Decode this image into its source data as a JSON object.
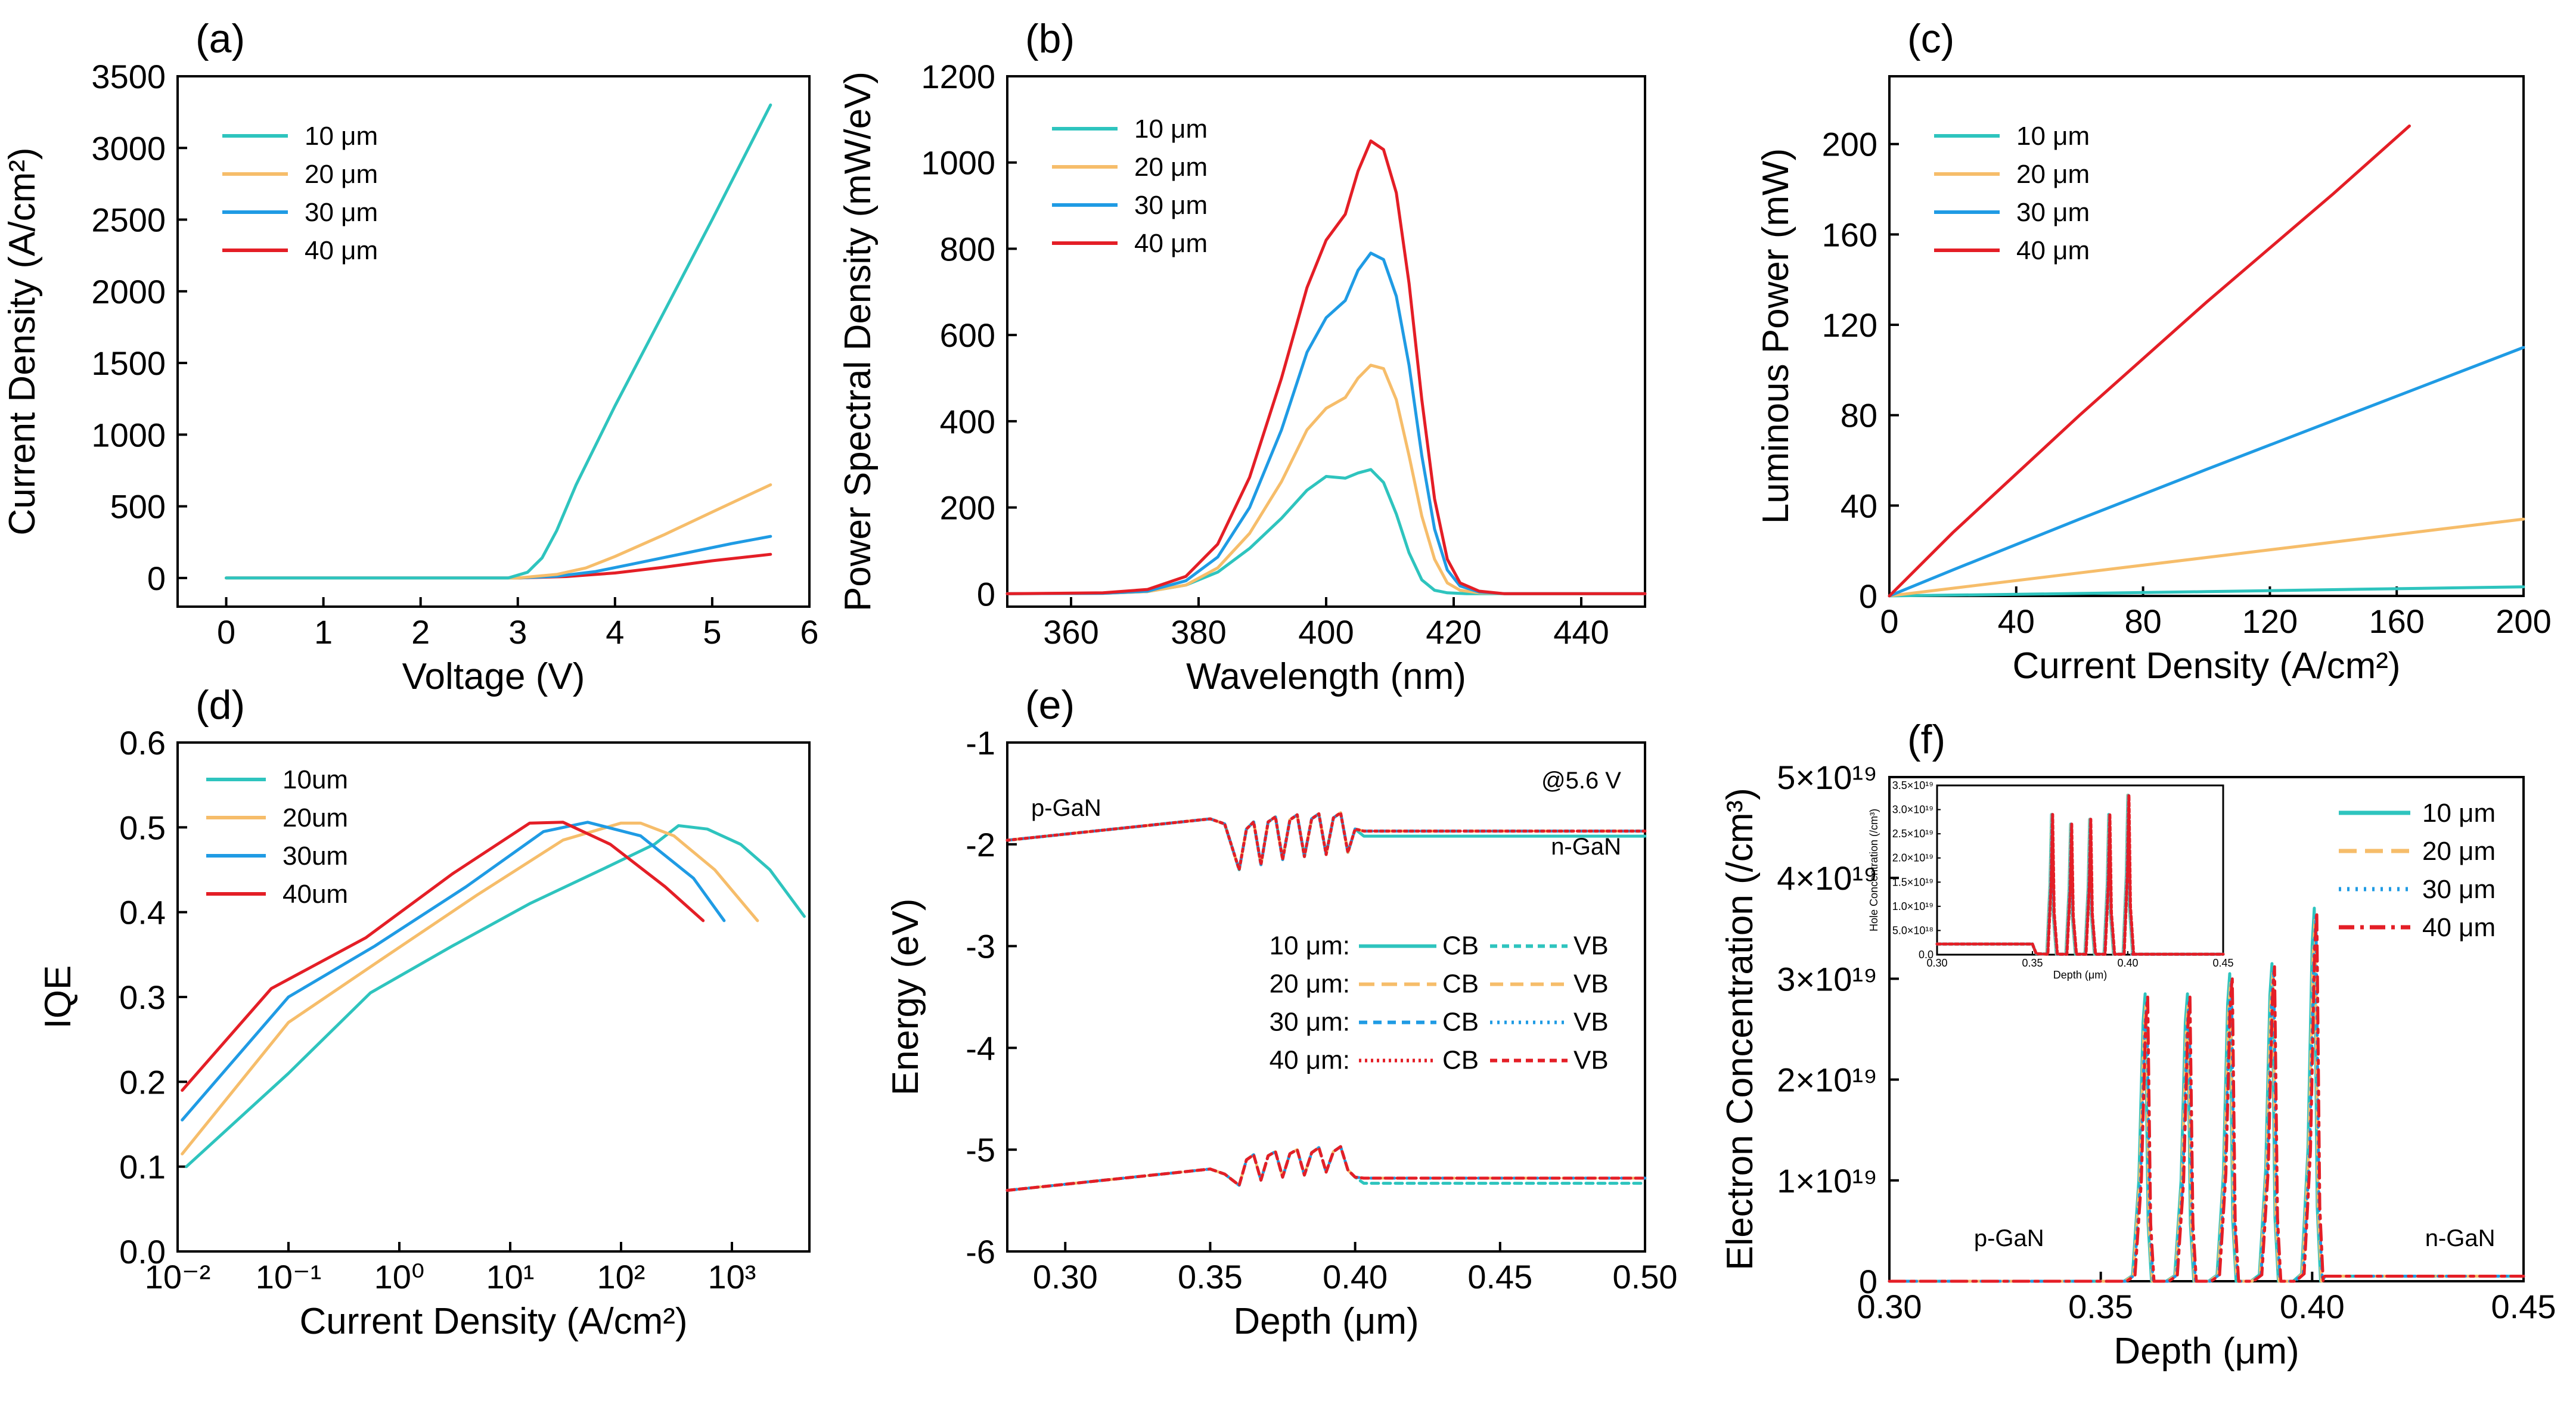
{
  "colors": {
    "10": "#2ec4be",
    "20": "#f6bd6a",
    "30": "#1f9be4",
    "40": "#e41e26"
  },
  "chart_data": [
    {
      "panel": "(a)",
      "type": "line",
      "xlabel": "Voltage (V)",
      "ylabel": "Current Density (A/cm²)",
      "xlim": [
        -0.5,
        6
      ],
      "ylim": [
        -200,
        3500
      ],
      "xticks": [
        "0",
        "1",
        "2",
        "3",
        "4",
        "5",
        "6"
      ],
      "yticks": [
        "0",
        "500",
        "1000",
        "1500",
        "2000",
        "2500",
        "3000",
        "3500"
      ],
      "series": [
        {
          "name": "10 μm",
          "color_key": "10",
          "x": [
            0,
            1,
            2,
            2.9,
            3.1,
            3.25,
            3.4,
            3.6,
            4,
            4.5,
            5,
            5.6
          ],
          "y": [
            0,
            0,
            0,
            0,
            40,
            140,
            330,
            650,
            1200,
            1850,
            2500,
            3300
          ]
        },
        {
          "name": "20 μm",
          "color_key": "20",
          "x": [
            0,
            1,
            2,
            3,
            3.4,
            3.7,
            4,
            4.5,
            5,
            5.6
          ],
          "y": [
            0,
            0,
            0,
            0,
            25,
            70,
            150,
            300,
            460,
            650
          ]
        },
        {
          "name": "30 μm",
          "color_key": "30",
          "x": [
            0,
            1,
            2,
            3,
            3.4,
            3.8,
            4.2,
            4.7,
            5.2,
            5.6
          ],
          "y": [
            0,
            0,
            0,
            0,
            12,
            45,
            100,
            170,
            240,
            290
          ]
        },
        {
          "name": "40 μm",
          "color_key": "40",
          "x": [
            0,
            1,
            2,
            3,
            3.5,
            4,
            4.5,
            5,
            5.6
          ],
          "y": [
            0,
            0,
            0,
            0,
            10,
            35,
            75,
            120,
            165
          ]
        }
      ]
    },
    {
      "panel": "(b)",
      "type": "line",
      "xlabel": "Wavelength (nm)",
      "ylabel": "Power Spectral Density (mW/eV)",
      "xlim": [
        350,
        450
      ],
      "ylim": [
        -30,
        1200
      ],
      "xticks": [
        "360",
        "380",
        "400",
        "420",
        "440"
      ],
      "yticks": [
        "0",
        "200",
        "400",
        "600",
        "800",
        "1000",
        "1200"
      ],
      "series": [
        {
          "name": "10 μm",
          "color_key": "10",
          "x": [
            350,
            365,
            372,
            378,
            383,
            388,
            393,
            397,
            400,
            403,
            405,
            407,
            409,
            411,
            413,
            415,
            417,
            419,
            422,
            425,
            450
          ],
          "y": [
            0,
            1,
            5,
            20,
            50,
            105,
            175,
            240,
            272,
            268,
            280,
            288,
            258,
            185,
            95,
            32,
            8,
            2,
            0,
            0,
            0
          ]
        },
        {
          "name": "20 μm",
          "color_key": "20",
          "x": [
            350,
            365,
            372,
            378,
            383,
            388,
            393,
            397,
            400,
            403,
            405,
            407,
            409,
            411,
            413,
            415,
            417,
            419,
            421,
            424,
            428,
            450
          ],
          "y": [
            0,
            1,
            5,
            20,
            60,
            140,
            260,
            380,
            430,
            455,
            500,
            530,
            522,
            450,
            320,
            180,
            80,
            25,
            8,
            2,
            0,
            0
          ]
        },
        {
          "name": "30 μm",
          "color_key": "30",
          "x": [
            350,
            365,
            372,
            378,
            383,
            388,
            393,
            397,
            400,
            403,
            405,
            407,
            409,
            411,
            413,
            415,
            417,
            419,
            421,
            424,
            428,
            450
          ],
          "y": [
            0,
            1,
            6,
            30,
            85,
            200,
            380,
            560,
            640,
            680,
            750,
            790,
            775,
            690,
            530,
            320,
            150,
            55,
            18,
            4,
            0,
            0
          ]
        },
        {
          "name": "40 μm",
          "color_key": "40",
          "x": [
            350,
            365,
            372,
            378,
            383,
            388,
            393,
            397,
            400,
            403,
            405,
            407,
            409,
            411,
            413,
            415,
            417,
            419,
            421,
            424,
            428,
            450
          ],
          "y": [
            0,
            2,
            10,
            40,
            115,
            270,
            500,
            710,
            820,
            880,
            980,
            1050,
            1030,
            930,
            720,
            450,
            220,
            80,
            25,
            6,
            0,
            0
          ]
        }
      ]
    },
    {
      "panel": "(c)",
      "type": "line",
      "xlabel": "Current Density (A/cm²)",
      "ylabel": "Luminous Power (mW)",
      "xlim": [
        0,
        200
      ],
      "ylim": [
        0,
        230
      ],
      "xticks": [
        "0",
        "40",
        "80",
        "120",
        "160",
        "200"
      ],
      "yticks": [
        "0",
        "40",
        "80",
        "120",
        "160",
        "200"
      ],
      "series": [
        {
          "name": "10 μm",
          "color_key": "10",
          "x": [
            0,
            50,
            100,
            150,
            200
          ],
          "y": [
            0,
            0.9,
            1.9,
            3,
            4
          ]
        },
        {
          "name": "20 μm",
          "color_key": "20",
          "x": [
            0,
            20,
            60,
            100,
            150,
            200
          ],
          "y": [
            0,
            3.4,
            10.2,
            17,
            25.5,
            34
          ]
        },
        {
          "name": "30 μm",
          "color_key": "30",
          "x": [
            0,
            20,
            60,
            100,
            150,
            200
          ],
          "y": [
            0,
            11.5,
            34,
            56,
            83,
            110
          ]
        },
        {
          "name": "40 μm",
          "color_key": "40",
          "x": [
            0,
            20,
            60,
            100,
            140,
            164
          ],
          "y": [
            0,
            28,
            80,
            130,
            178,
            208
          ]
        }
      ]
    },
    {
      "panel": "(d)",
      "type": "line",
      "xscale": "log",
      "xlabel": "Current Density (A/cm²)",
      "ylabel": "IQE",
      "xlim": [
        0.01,
        5000
      ],
      "ylim": [
        0,
        0.6
      ],
      "xticks": [
        "10⁻²",
        "10⁻¹",
        "10⁰",
        "10¹",
        "10²",
        "10³"
      ],
      "yticks": [
        "0.0",
        "0.1",
        "0.2",
        "0.3",
        "0.4",
        "0.5",
        "0.6"
      ],
      "series": [
        {
          "name": "10um",
          "color_key": "10",
          "x": [
            0.012,
            0.1,
            0.55,
            3,
            15,
            80,
            200,
            330,
            600,
            1200,
            2200,
            4500
          ],
          "y": [
            0.1,
            0.21,
            0.305,
            0.36,
            0.41,
            0.455,
            0.48,
            0.502,
            0.498,
            0.48,
            0.45,
            0.395
          ]
        },
        {
          "name": "20um",
          "color_key": "20",
          "x": [
            0.011,
            0.1,
            0.8,
            5,
            30,
            100,
            150,
            300,
            700,
            1700
          ],
          "y": [
            0.115,
            0.27,
            0.35,
            0.42,
            0.485,
            0.505,
            0.505,
            0.49,
            0.45,
            0.39
          ]
        },
        {
          "name": "30um",
          "color_key": "30",
          "x": [
            0.011,
            0.1,
            0.6,
            4,
            20,
            50,
            150,
            450,
            850
          ],
          "y": [
            0.155,
            0.3,
            0.36,
            0.43,
            0.495,
            0.506,
            0.49,
            0.44,
            0.39
          ]
        },
        {
          "name": "40um",
          "color_key": "40",
          "x": [
            0.011,
            0.07,
            0.5,
            3,
            15,
            30,
            80,
            250,
            550
          ],
          "y": [
            0.19,
            0.31,
            0.37,
            0.445,
            0.505,
            0.506,
            0.48,
            0.43,
            0.39
          ]
        }
      ]
    },
    {
      "panel": "(e)",
      "type": "line",
      "xlabel": "Depth (μm)",
      "ylabel": "Energy (eV)",
      "xlim": [
        0.28,
        0.5
      ],
      "ylim": [
        -6,
        -1
      ],
      "xticks": [
        "0.30",
        "0.35",
        "0.40",
        "0.45",
        "0.50"
      ],
      "yticks": [
        "-1",
        "-2",
        "-3",
        "-4",
        "-5",
        "-6"
      ],
      "series": [
        {
          "name": "10 μm: CB",
          "color_key": "10",
          "band": "CB"
        },
        {
          "name": "10 μm: VB",
          "color_key": "10",
          "band": "VB"
        },
        {
          "name": "20 μm: CB",
          "color_key": "20",
          "band": "CB"
        },
        {
          "name": "20 μm: VB",
          "color_key": "20",
          "band": "VB"
        },
        {
          "name": "30 μm: CB",
          "color_key": "30",
          "band": "CB"
        },
        {
          "name": "30 μm: VB",
          "color_key": "30",
          "band": "VB"
        },
        {
          "name": "40 μm: CB",
          "color_key": "40",
          "band": "CB"
        },
        {
          "name": "40 μm: VB",
          "color_key": "40",
          "band": "VB"
        }
      ],
      "cb_x": [
        0.28,
        0.35,
        0.355,
        0.36,
        0.3625,
        0.365,
        0.3675,
        0.37,
        0.3725,
        0.375,
        0.3775,
        0.38,
        0.3825,
        0.385,
        0.3875,
        0.39,
        0.3925,
        0.395,
        0.3975,
        0.4,
        0.403,
        0.5
      ],
      "cb_y": [
        -1.96,
        -1.75,
        -1.8,
        -2.25,
        -1.85,
        -1.78,
        -2.2,
        -1.78,
        -1.73,
        -2.15,
        -1.76,
        -1.71,
        -2.12,
        -1.75,
        -1.7,
        -2.1,
        -1.74,
        -1.69,
        -2.08,
        -1.85,
        -1.87,
        -1.87
      ],
      "vb_x": [
        0.28,
        0.35,
        0.355,
        0.36,
        0.3625,
        0.365,
        0.3675,
        0.37,
        0.3725,
        0.375,
        0.3775,
        0.38,
        0.3825,
        0.385,
        0.3875,
        0.39,
        0.3925,
        0.395,
        0.3975,
        0.4,
        0.403,
        0.5
      ],
      "vb_y": [
        -5.4,
        -5.19,
        -5.24,
        -5.35,
        -5.1,
        -5.05,
        -5.3,
        -5.06,
        -5.02,
        -5.27,
        -5.04,
        -5.0,
        -5.25,
        -5.03,
        -4.98,
        -5.22,
        -5.02,
        -4.97,
        -5.2,
        -5.27,
        -5.28,
        -5.28
      ],
      "n_gan_offset": -0.05,
      "annotations": [
        "p-GaN",
        "n-GaN",
        "@5.6 V"
      ],
      "legend_rows": [
        {
          "label": "10 μm:",
          "cb": "CB",
          "vb": "VB",
          "color_key": "10"
        },
        {
          "label": "20 μm:",
          "cb": "CB",
          "vb": "VB",
          "color_key": "20"
        },
        {
          "label": "30 μm:",
          "cb": "CB",
          "vb": "VB",
          "color_key": "30"
        },
        {
          "label": "40 μm:",
          "cb": "CB",
          "vb": "VB",
          "color_key": "40"
        }
      ]
    },
    {
      "panel": "(f)",
      "type": "line",
      "xlabel": "Depth (μm)",
      "ylabel": "Electron Concentration (/cm³)",
      "xlim": [
        0.3,
        0.45
      ],
      "ylim": [
        0,
        5e+19
      ],
      "xticks": [
        "0.30",
        "0.35",
        "0.40",
        "0.45"
      ],
      "yticks": [
        "0",
        "1×10¹⁹",
        "2×10¹⁹",
        "3×10¹⁹",
        "4×10¹⁹",
        "5×10¹⁹"
      ],
      "peaks": [
        {
          "center": 0.36,
          "height": 2.85e+19
        },
        {
          "center": 0.37,
          "height": 2.85e+19
        },
        {
          "center": 0.38,
          "height": 3.05e+19
        },
        {
          "center": 0.39,
          "height": 3.15e+19
        },
        {
          "center": 0.4,
          "height": 3.7e+19
        }
      ],
      "annotations": [
        "p-GaN",
        "n-GaN"
      ],
      "series": [
        {
          "name": "10 μm",
          "color_key": "10"
        },
        {
          "name": "20 μm",
          "color_key": "20"
        },
        {
          "name": "30 μm",
          "color_key": "30"
        },
        {
          "name": "40 μm",
          "color_key": "40"
        }
      ],
      "inset": {
        "xlabel": "Depth (μm)",
        "ylabel": "Hole Concentration (/cm³)",
        "xlim": [
          0.3,
          0.45
        ],
        "ylim": [
          0,
          3.5e+19
        ],
        "xticks": [
          "0.30",
          "0.35",
          "0.40",
          "0.45"
        ],
        "yticks": [
          "0.0",
          "5.0×10¹⁸",
          "1.0×10¹⁹",
          "1.5×10¹⁹",
          "2.0×10¹⁹",
          "2.5×10¹⁹",
          "3.0×10¹⁹",
          "3.5×10¹⁹"
        ],
        "baseline": 2.2e+18,
        "peaks": [
          {
            "center": 0.36,
            "height": 2.9e+19
          },
          {
            "center": 0.37,
            "height": 2.7e+19
          },
          {
            "center": 0.38,
            "height": 2.8e+19
          },
          {
            "center": 0.39,
            "height": 2.9e+19
          },
          {
            "center": 0.4,
            "height": 3.3e+19
          }
        ]
      }
    }
  ]
}
